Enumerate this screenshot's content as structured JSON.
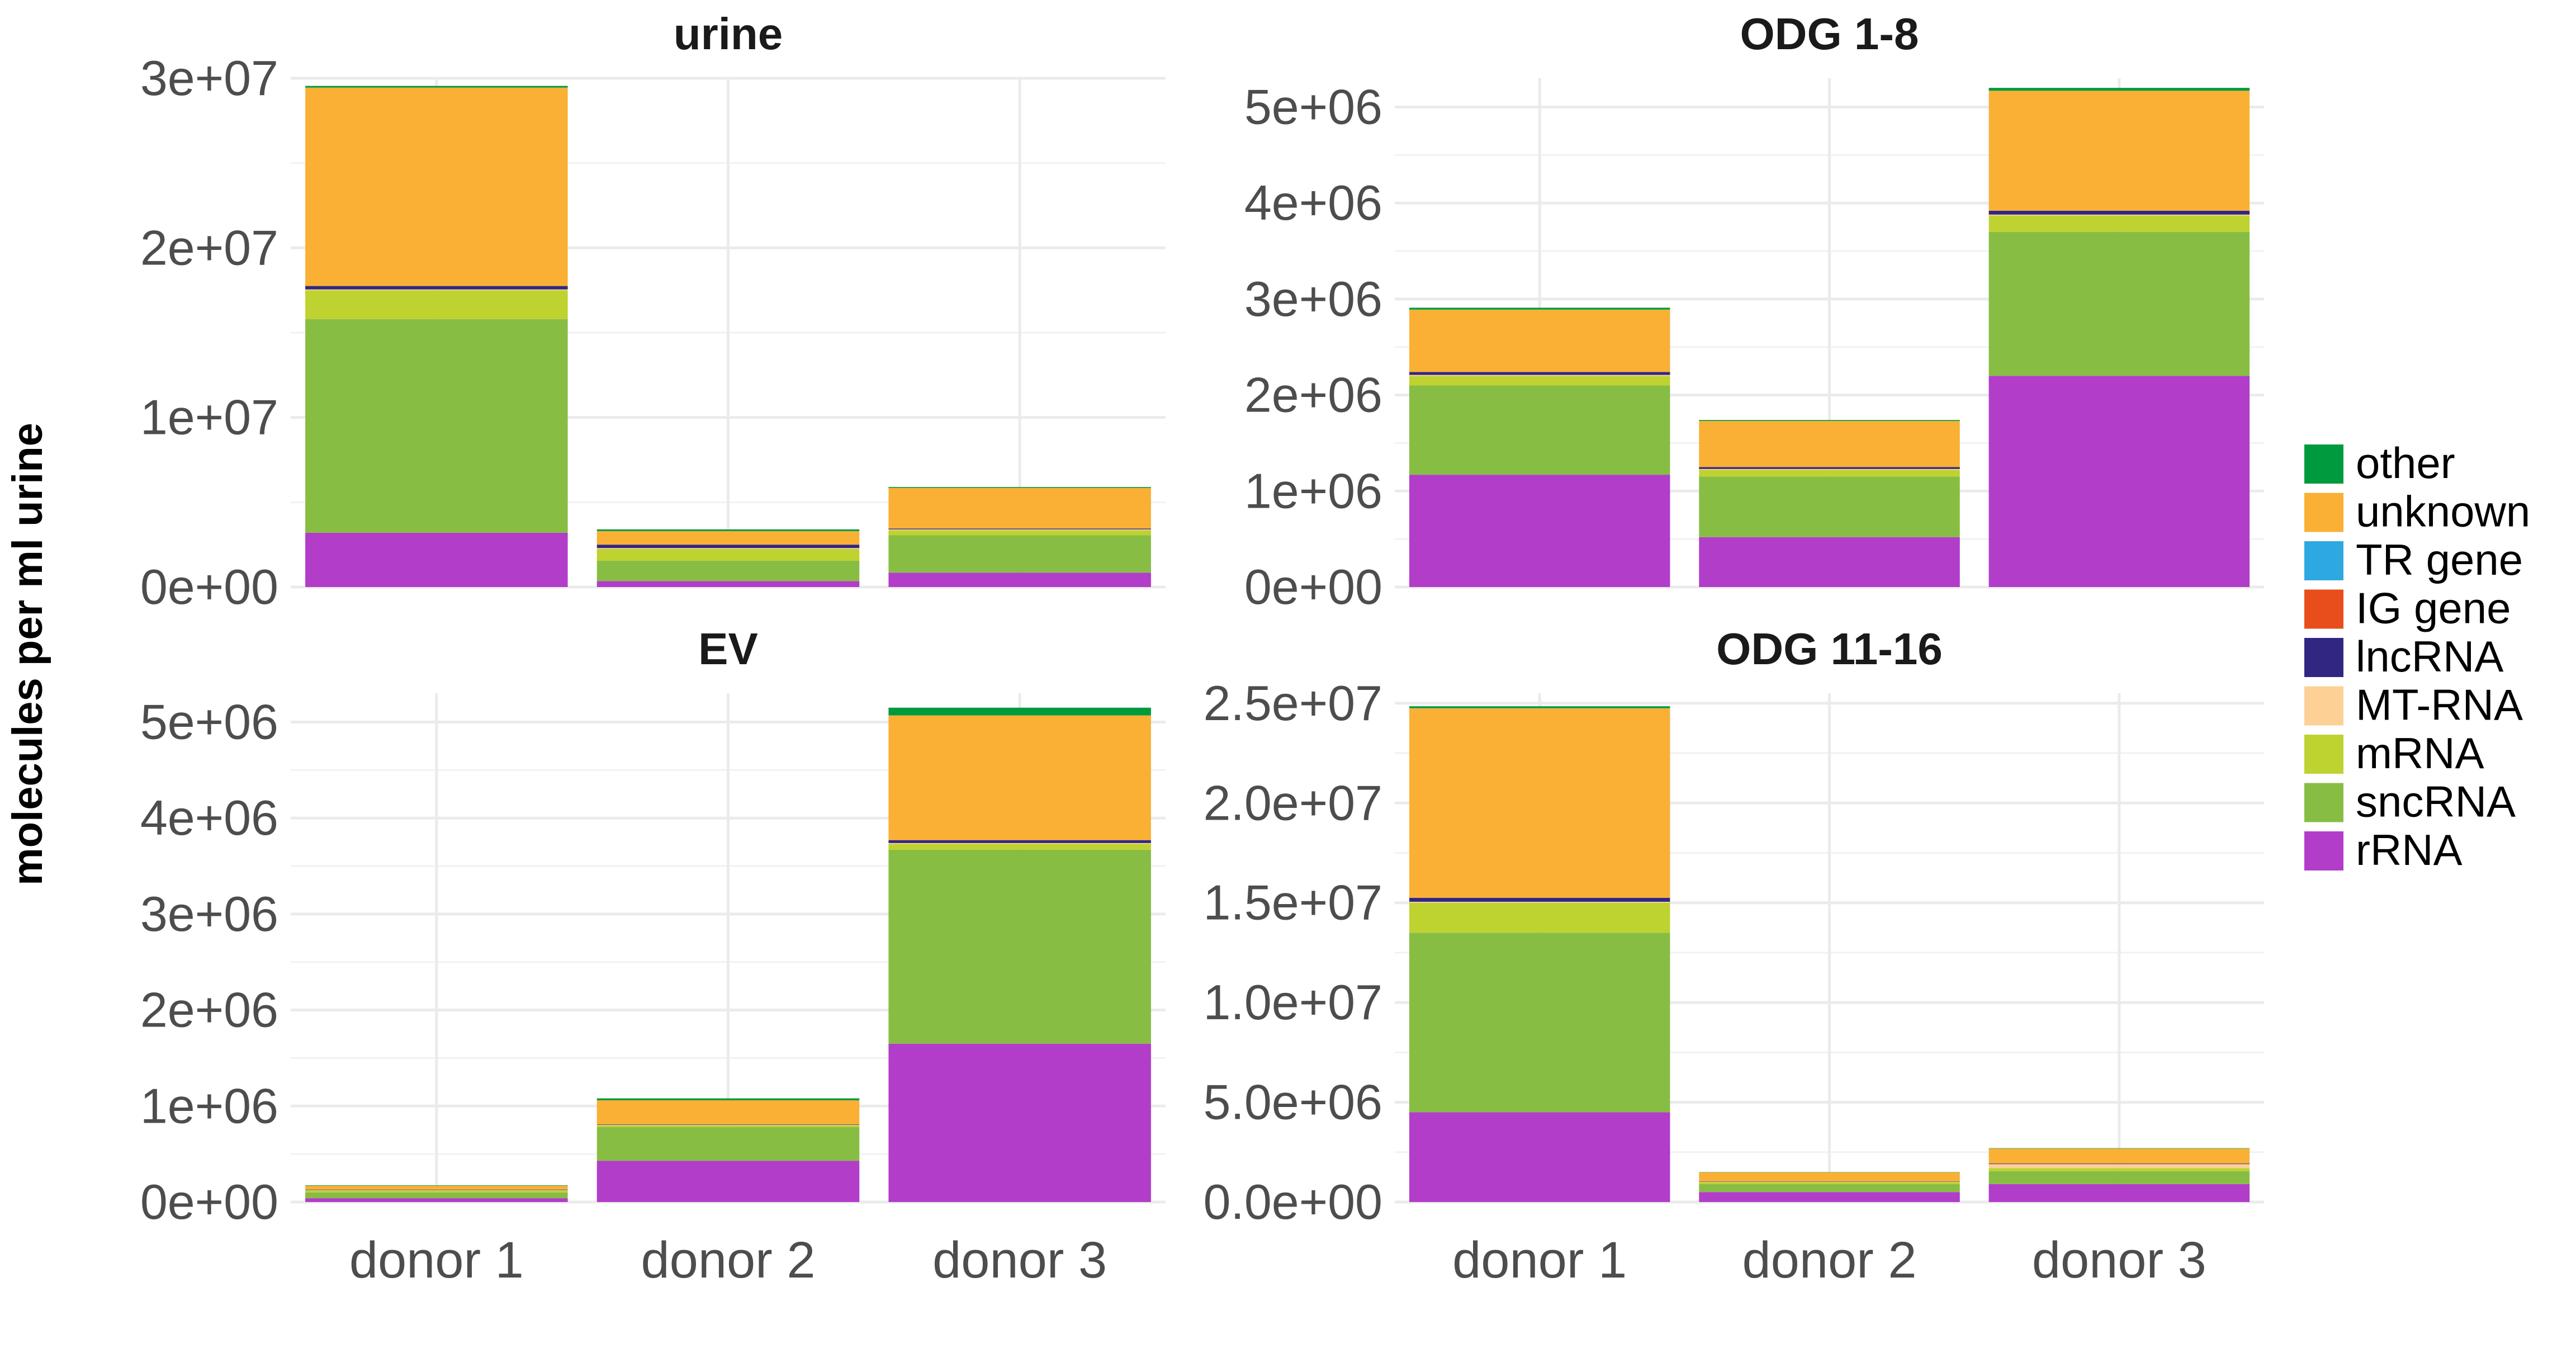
{
  "chart_data": {
    "type": "bar",
    "stacked": true,
    "ylabel": "molecules per ml urine",
    "xlabel": "",
    "categories": [
      "donor 1",
      "donor 2",
      "donor 3"
    ],
    "stack_order": [
      "rRNA",
      "sncRNA",
      "mRNA",
      "MT-RNA",
      "lncRNA",
      "IG gene",
      "TR gene",
      "unknown",
      "other"
    ],
    "legend": {
      "placement": "right",
      "entries": [
        {
          "name": "other",
          "color": "#009a3e"
        },
        {
          "name": "unknown",
          "color": "#f9b035"
        },
        {
          "name": "TR gene",
          "color": "#2ea8e0"
        },
        {
          "name": "IG gene",
          "color": "#e84e1b"
        },
        {
          "name": "lncRNA",
          "color": "#312782"
        },
        {
          "name": "MT-RNA",
          "color": "#fdd096"
        },
        {
          "name": "mRNA",
          "color": "#bed230"
        },
        {
          "name": "sncRNA",
          "color": "#88bd44"
        },
        {
          "name": "rRNA",
          "color": "#b13dc9"
        }
      ]
    },
    "panels": [
      {
        "title": "urine",
        "ylim": [
          0,
          30000000
        ],
        "yticks": [
          "0e+00",
          "1e+07",
          "2e+07",
          "3e+07"
        ],
        "ytick_values": [
          0,
          10000000,
          20000000,
          30000000
        ],
        "show_x_labels": false,
        "series": [
          {
            "name": "rRNA",
            "values": [
              3200000,
              350000,
              850000
            ]
          },
          {
            "name": "sncRNA",
            "values": [
              12600000,
              1200000,
              2200000
            ]
          },
          {
            "name": "mRNA",
            "values": [
              1700000,
              700000,
              300000
            ]
          },
          {
            "name": "MT-RNA",
            "values": [
              50000,
              50000,
              50000
            ]
          },
          {
            "name": "lncRNA",
            "values": [
              200000,
              200000,
              50000
            ]
          },
          {
            "name": "IG gene",
            "values": [
              0,
              0,
              0
            ]
          },
          {
            "name": "TR gene",
            "values": [
              0,
              0,
              0
            ]
          },
          {
            "name": "unknown",
            "values": [
              11700000,
              800000,
              2400000
            ]
          },
          {
            "name": "other",
            "values": [
              100000,
              100000,
              50000
            ]
          }
        ]
      },
      {
        "title": "ODG 1-8",
        "ylim": [
          0,
          5300000
        ],
        "yticks": [
          "0e+00",
          "1e+06",
          "2e+06",
          "3e+06",
          "4e+06",
          "5e+06"
        ],
        "ytick_values": [
          0,
          1000000,
          2000000,
          3000000,
          4000000,
          5000000
        ],
        "show_x_labels": false,
        "series": [
          {
            "name": "rRNA",
            "values": [
              1170000,
              520000,
              2200000
            ]
          },
          {
            "name": "sncRNA",
            "values": [
              930000,
              630000,
              1500000
            ]
          },
          {
            "name": "mRNA",
            "values": [
              100000,
              70000,
              170000
            ]
          },
          {
            "name": "MT-RNA",
            "values": [
              10000,
              10000,
              10000
            ]
          },
          {
            "name": "lncRNA",
            "values": [
              30000,
              20000,
              40000
            ]
          },
          {
            "name": "IG gene",
            "values": [
              0,
              0,
              0
            ]
          },
          {
            "name": "TR gene",
            "values": [
              0,
              0,
              0
            ]
          },
          {
            "name": "unknown",
            "values": [
              650000,
              480000,
              1250000
            ]
          },
          {
            "name": "other",
            "values": [
              20000,
              10000,
              30000
            ]
          }
        ]
      },
      {
        "title": "EV",
        "ylim": [
          0,
          5300000
        ],
        "yticks": [
          "0e+00",
          "1e+06",
          "2e+06",
          "3e+06",
          "4e+06",
          "5e+06"
        ],
        "ytick_values": [
          0,
          1000000,
          2000000,
          3000000,
          4000000,
          5000000
        ],
        "show_x_labels": true,
        "series": [
          {
            "name": "rRNA",
            "values": [
              40000,
              430000,
              1650000
            ]
          },
          {
            "name": "sncRNA",
            "values": [
              60000,
              350000,
              2020000
            ]
          },
          {
            "name": "mRNA",
            "values": [
              20000,
              20000,
              60000
            ]
          },
          {
            "name": "MT-RNA",
            "values": [
              5000,
              5000,
              10000
            ]
          },
          {
            "name": "lncRNA",
            "values": [
              5000,
              5000,
              30000
            ]
          },
          {
            "name": "IG gene",
            "values": [
              0,
              0,
              0
            ]
          },
          {
            "name": "TR gene",
            "values": [
              0,
              0,
              0
            ]
          },
          {
            "name": "unknown",
            "values": [
              40000,
              250000,
              1300000
            ]
          },
          {
            "name": "other",
            "values": [
              5000,
              20000,
              80000
            ]
          }
        ]
      },
      {
        "title": "ODG 11-16",
        "ylim": [
          0,
          25500000
        ],
        "yticks": [
          "0.0e+00",
          "5.0e+06",
          "1.0e+07",
          "1.5e+07",
          "2.0e+07",
          "2.5e+07"
        ],
        "ytick_values": [
          0,
          5000000,
          10000000,
          15000000,
          20000000,
          25000000
        ],
        "show_x_labels": true,
        "series": [
          {
            "name": "rRNA",
            "values": [
              4500000,
              500000,
              900000
            ]
          },
          {
            "name": "sncRNA",
            "values": [
              9000000,
              400000,
              650000
            ]
          },
          {
            "name": "mRNA",
            "values": [
              1500000,
              100000,
              150000
            ]
          },
          {
            "name": "MT-RNA",
            "values": [
              50000,
              20000,
              200000
            ]
          },
          {
            "name": "lncRNA",
            "values": [
              200000,
              20000,
              30000
            ]
          },
          {
            "name": "IG gene",
            "values": [
              0,
              0,
              0
            ]
          },
          {
            "name": "TR gene",
            "values": [
              0,
              0,
              0
            ]
          },
          {
            "name": "unknown",
            "values": [
              9500000,
              450000,
              750000
            ]
          },
          {
            "name": "other",
            "values": [
              100000,
              10000,
              20000
            ]
          }
        ]
      }
    ]
  }
}
